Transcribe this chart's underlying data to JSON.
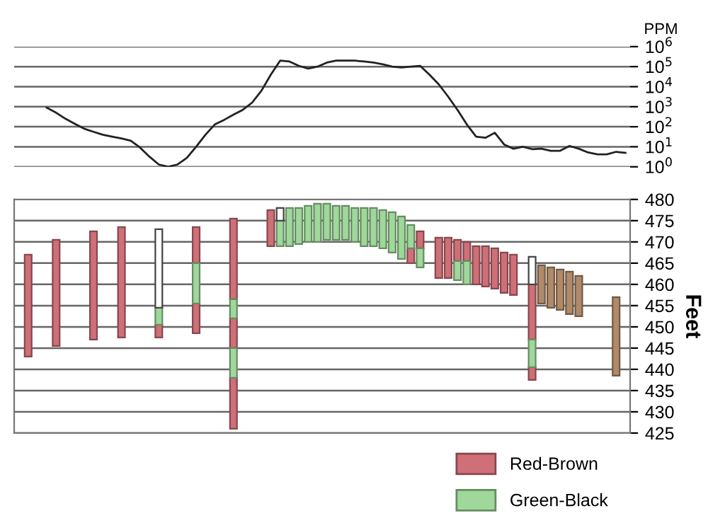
{
  "chart_data": [
    {
      "type": "line",
      "color": "#222222",
      "log": true,
      "grid": "y",
      "tick_labels": "y",
      "ylabel": "PPM",
      "categories": [
        null,
        null,
        null,
        null,
        null,
        null,
        null,
        null,
        null,
        null,
        null,
        null,
        null,
        null,
        null,
        null,
        null,
        null,
        null,
        null,
        null,
        null,
        null,
        null,
        null,
        null,
        null,
        null,
        null,
        null,
        null,
        null,
        null,
        null,
        null,
        null,
        null,
        null,
        null,
        null,
        null,
        null,
        null,
        null,
        null,
        null,
        null,
        null,
        null,
        null,
        null,
        null,
        null,
        null,
        null,
        null,
        null,
        null,
        null,
        null,
        null,
        null,
        null,
        null,
        null,
        null
      ],
      "values": [
        null,
        null,
        null,
        890,
        500,
        250,
        140,
        80,
        56,
        40,
        32,
        26,
        20,
        9,
        3.2,
        1.3,
        1,
        1.3,
        2.8,
        10,
        40,
        130,
        220,
        400,
        700,
        1600,
        6300,
        40000,
        200000,
        180000,
        110000,
        80000,
        100000,
        160000,
        200000,
        200000,
        200000,
        180000,
        160000,
        130000,
        100000,
        90000,
        100000,
        110000,
        40000,
        13000,
        3200,
        700,
        130,
        32,
        28,
        50,
        13,
        8,
        10,
        7.6,
        8,
        6.3,
        6.3,
        11,
        8,
        5.2,
        4.2,
        4.2,
        5.6,
        5
      ],
      "ylim": [
        1,
        1000000
      ],
      "yticks": [
        {
          "value": 1,
          "label": "10$^{0}$"
        },
        {
          "value": 10,
          "label": "10$^{1}$"
        },
        {
          "value": 100,
          "label": "10$^{2}$"
        },
        {
          "value": 1000,
          "label": "10$^{3}$"
        },
        {
          "value": 10000,
          "label": "10$^{4}$"
        },
        {
          "value": 100000,
          "label": "10$^{5}$"
        },
        {
          "value": 1000000,
          "label": "10$^{6}$"
        }
      ]
    },
    {
      "type": "bar",
      "grid": "y",
      "tick_labels": "y",
      "ylabel": "Feet",
      "legend": "bottom right",
      "categories": [
        null,
        null,
        null,
        null,
        null,
        null,
        null,
        null,
        null,
        null,
        null,
        null,
        null,
        null,
        null,
        null,
        null,
        null,
        null,
        null,
        null,
        null,
        null,
        null,
        null,
        null,
        null,
        null,
        null,
        null,
        null,
        null,
        null,
        null,
        null,
        null,
        null,
        null,
        null,
        null,
        null,
        null,
        null,
        null,
        null,
        null,
        null,
        null,
        null,
        null,
        null,
        null,
        null,
        null,
        null,
        null,
        null,
        null,
        null,
        null,
        null,
        null,
        null,
        null,
        null,
        null
      ],
      "ylim": [
        425,
        480
      ],
      "yticks": [
        425,
        430,
        435,
        440,
        445,
        450,
        455,
        460,
        465,
        470,
        475,
        480
      ],
      "series": [
        {
          "name": "Red-Brown",
          "color": "#cf6f78",
          "base": [
            null,
            443,
            null,
            null,
            445.5,
            null,
            null,
            null,
            447,
            null,
            null,
            447.5,
            null,
            null,
            null,
            447.5,
            null,
            null,
            null,
            448.5,
            null,
            null,
            null,
            426,
            null,
            null,
            null,
            469,
            null,
            null,
            null,
            null,
            null,
            null,
            null,
            null,
            null,
            null,
            null,
            null,
            null,
            null,
            465,
            468.5,
            null,
            461.5,
            461.5,
            465.5,
            465.5,
            460,
            459.5,
            459,
            458,
            457.5,
            null,
            437.5,
            null,
            null,
            null,
            null,
            null,
            null,
            null,
            null,
            null,
            null
          ],
          "values": [
            null,
            24,
            null,
            null,
            25,
            null,
            null,
            null,
            25.5,
            null,
            null,
            26,
            null,
            null,
            null,
            3,
            null,
            null,
            null,
            7,
            null,
            null,
            null,
            12,
            null,
            null,
            null,
            8.5,
            null,
            null,
            null,
            null,
            null,
            null,
            null,
            null,
            null,
            null,
            null,
            null,
            null,
            null,
            3.5,
            4,
            null,
            9.5,
            9.5,
            5,
            4.5,
            9,
            9.5,
            9.5,
            9.5,
            9.5,
            null,
            3,
            null,
            null,
            null,
            null,
            null,
            null,
            null,
            null,
            null,
            null
          ]
        },
        {
          "color": "#cf6f78",
          "base": [
            null,
            null,
            null,
            null,
            null,
            null,
            null,
            null,
            null,
            null,
            null,
            null,
            null,
            null,
            null,
            null,
            null,
            null,
            null,
            465,
            null,
            null,
            null,
            445,
            null,
            null,
            null,
            null,
            null,
            null,
            null,
            null,
            null,
            null,
            null,
            null,
            null,
            null,
            null,
            null,
            null,
            null,
            null,
            null,
            null,
            null,
            null,
            null,
            null,
            null,
            null,
            null,
            null,
            null,
            null,
            447,
            null,
            null,
            null,
            null,
            null,
            null,
            null,
            null,
            null,
            null
          ],
          "values": [
            null,
            null,
            null,
            null,
            null,
            null,
            null,
            null,
            null,
            null,
            null,
            null,
            null,
            null,
            null,
            null,
            null,
            null,
            null,
            8.5,
            null,
            null,
            null,
            7,
            null,
            null,
            null,
            null,
            null,
            null,
            null,
            null,
            null,
            null,
            null,
            null,
            null,
            null,
            null,
            null,
            null,
            null,
            null,
            null,
            null,
            null,
            null,
            null,
            null,
            null,
            null,
            null,
            null,
            null,
            null,
            13,
            null,
            null,
            null,
            null,
            null,
            null,
            null,
            null,
            null,
            null
          ]
        },
        {
          "color": "#cf6f78",
          "base": [
            null,
            null,
            null,
            null,
            null,
            null,
            null,
            null,
            null,
            null,
            null,
            null,
            null,
            null,
            null,
            null,
            null,
            null,
            null,
            null,
            null,
            null,
            null,
            456.5,
            null,
            null,
            null,
            null,
            null,
            null,
            null,
            null,
            null,
            null,
            null,
            null,
            null,
            null,
            null,
            null,
            null,
            null,
            null,
            null,
            null,
            null,
            null,
            null,
            null,
            null,
            null,
            null,
            null,
            null,
            null,
            null,
            null,
            null,
            null,
            null,
            null,
            null,
            null,
            null,
            null,
            null
          ],
          "values": [
            null,
            null,
            null,
            null,
            null,
            null,
            null,
            null,
            null,
            null,
            null,
            null,
            null,
            null,
            null,
            null,
            null,
            null,
            null,
            null,
            null,
            null,
            null,
            19,
            null,
            null,
            null,
            null,
            null,
            null,
            null,
            null,
            null,
            null,
            null,
            null,
            null,
            null,
            null,
            null,
            null,
            null,
            null,
            null,
            null,
            null,
            null,
            null,
            null,
            null,
            null,
            null,
            null,
            null,
            null,
            null,
            null,
            null,
            null,
            null,
            null,
            null,
            null,
            null,
            null,
            null
          ]
        },
        {
          "name": "Green-Black",
          "color": "#9fd89a",
          "base": [
            null,
            null,
            null,
            null,
            null,
            null,
            null,
            null,
            null,
            null,
            null,
            null,
            null,
            null,
            null,
            450.5,
            null,
            null,
            null,
            455.5,
            null,
            null,
            null,
            438,
            null,
            null,
            null,
            null,
            469,
            469,
            469.5,
            470,
            470,
            470.5,
            470.5,
            470.5,
            470,
            469,
            469,
            468.5,
            467.5,
            466,
            468.5,
            464,
            null,
            null,
            null,
            461,
            460,
            null,
            null,
            null,
            null,
            null,
            null,
            440.5,
            null,
            null,
            null,
            null,
            null,
            null,
            null,
            null,
            null,
            null
          ],
          "values": [
            null,
            null,
            null,
            null,
            null,
            null,
            null,
            null,
            null,
            null,
            null,
            null,
            null,
            null,
            null,
            4,
            null,
            null,
            null,
            9.5,
            null,
            null,
            null,
            7,
            null,
            null,
            null,
            null,
            6,
            9,
            8.5,
            8.5,
            9,
            8.5,
            8,
            8,
            8,
            9,
            9,
            9,
            9.5,
            10,
            5.5,
            4.5,
            null,
            null,
            null,
            4.5,
            5.5,
            null,
            null,
            null,
            null,
            null,
            null,
            6.5,
            null,
            null,
            null,
            null,
            null,
            null,
            null,
            null,
            null,
            null
          ]
        },
        {
          "color": "#9fd89a",
          "base": [
            null,
            null,
            null,
            null,
            null,
            null,
            null,
            null,
            null,
            null,
            null,
            null,
            null,
            null,
            null,
            null,
            null,
            null,
            null,
            null,
            null,
            null,
            null,
            452,
            null,
            null,
            null,
            null,
            null,
            null,
            null,
            null,
            null,
            null,
            null,
            null,
            null,
            null,
            null,
            null,
            null,
            null,
            null,
            null,
            null,
            null,
            null,
            null,
            null,
            null,
            null,
            null,
            null,
            null,
            null,
            null,
            null,
            null,
            null,
            null,
            null,
            null,
            null,
            null,
            null,
            null
          ],
          "values": [
            null,
            null,
            null,
            null,
            null,
            null,
            null,
            null,
            null,
            null,
            null,
            null,
            null,
            null,
            null,
            null,
            null,
            null,
            null,
            null,
            null,
            null,
            null,
            4.5,
            null,
            null,
            null,
            null,
            null,
            null,
            null,
            null,
            null,
            null,
            null,
            null,
            null,
            null,
            null,
            null,
            null,
            null,
            null,
            null,
            null,
            null,
            null,
            null,
            null,
            null,
            null,
            null,
            null,
            null,
            null,
            null,
            null,
            null,
            null,
            null,
            null,
            null,
            null,
            null,
            null,
            null
          ]
        },
        {
          "color": "#ffffff",
          "base": [
            null,
            null,
            null,
            null,
            null,
            null,
            null,
            null,
            null,
            null,
            null,
            null,
            null,
            null,
            null,
            454.5,
            null,
            null,
            null,
            null,
            null,
            null,
            null,
            null,
            null,
            null,
            null,
            null,
            475,
            null,
            null,
            null,
            null,
            null,
            null,
            null,
            null,
            null,
            null,
            null,
            null,
            null,
            null,
            null,
            null,
            null,
            null,
            null,
            null,
            null,
            null,
            null,
            null,
            null,
            null,
            460,
            null,
            null,
            null,
            null,
            null,
            null,
            null,
            null,
            null,
            null
          ],
          "values": [
            null,
            null,
            null,
            null,
            null,
            null,
            null,
            null,
            null,
            null,
            null,
            null,
            null,
            null,
            null,
            18.5,
            null,
            null,
            null,
            null,
            null,
            null,
            null,
            null,
            null,
            null,
            null,
            null,
            3,
            null,
            null,
            null,
            null,
            null,
            null,
            null,
            null,
            null,
            null,
            null,
            null,
            null,
            null,
            null,
            null,
            null,
            null,
            null,
            null,
            null,
            null,
            null,
            null,
            null,
            null,
            6.5,
            null,
            null,
            null,
            null,
            null,
            null,
            null,
            null,
            null,
            null
          ]
        },
        {
          "color": "#b08a6a",
          "base": [
            null,
            null,
            null,
            null,
            null,
            null,
            null,
            null,
            null,
            null,
            null,
            null,
            null,
            null,
            null,
            null,
            null,
            null,
            null,
            null,
            null,
            null,
            null,
            null,
            null,
            null,
            null,
            null,
            null,
            null,
            null,
            null,
            null,
            null,
            null,
            null,
            null,
            null,
            null,
            null,
            null,
            null,
            null,
            null,
            null,
            null,
            null,
            null,
            null,
            null,
            null,
            null,
            null,
            null,
            null,
            null,
            455.5,
            454.5,
            454,
            453,
            452.5,
            null,
            null,
            null,
            438.5,
            null
          ],
          "values": [
            null,
            null,
            null,
            null,
            null,
            null,
            null,
            null,
            null,
            null,
            null,
            null,
            null,
            null,
            null,
            null,
            null,
            null,
            null,
            null,
            null,
            null,
            null,
            null,
            null,
            null,
            null,
            null,
            null,
            null,
            null,
            null,
            null,
            null,
            null,
            null,
            null,
            null,
            null,
            null,
            null,
            null,
            null,
            null,
            null,
            null,
            null,
            null,
            null,
            null,
            null,
            null,
            null,
            null,
            null,
            null,
            9,
            9.5,
            9.5,
            10,
            9.5,
            null,
            null,
            null,
            18.5,
            null
          ]
        }
      ]
    }
  ]
}
